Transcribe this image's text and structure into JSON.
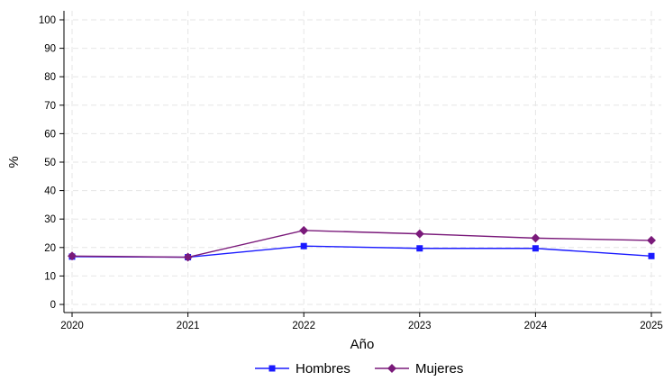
{
  "chart_data": {
    "type": "line",
    "title": "",
    "xlabel": "Año",
    "ylabel": "%",
    "x": [
      2020,
      2021,
      2022,
      2023,
      2024,
      2025
    ],
    "ylim": [
      0,
      100
    ],
    "yticks": [
      0,
      10,
      20,
      30,
      40,
      50,
      60,
      70,
      80,
      90,
      100
    ],
    "grid": true,
    "legend_position": "bottom",
    "series": [
      {
        "name": "Hombres",
        "color": "#1a1aff",
        "marker": "square",
        "values": [
          16.8,
          16.6,
          20.5,
          19.7,
          19.7,
          17.0
        ]
      },
      {
        "name": "Mujeres",
        "color": "#7a1a7a",
        "marker": "diamond",
        "values": [
          17.0,
          16.6,
          26.0,
          24.8,
          23.3,
          22.5
        ]
      }
    ]
  }
}
